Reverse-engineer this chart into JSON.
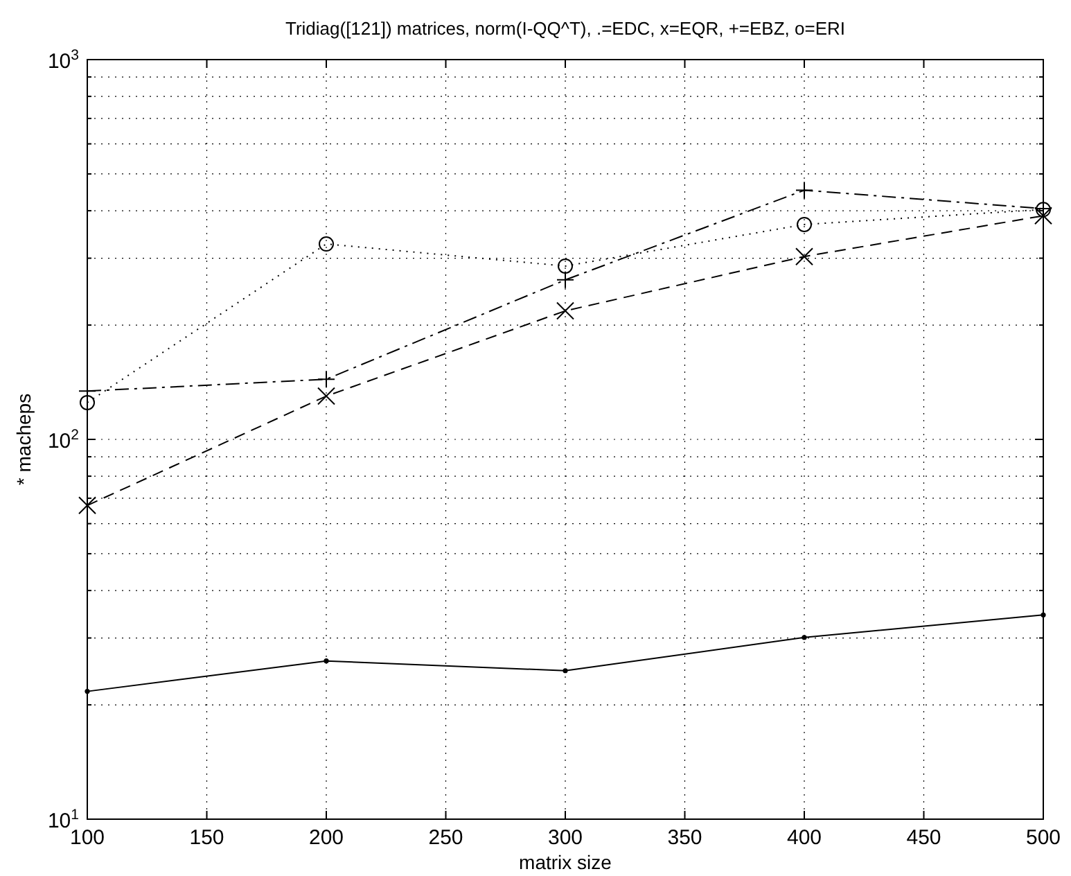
{
  "chart_data": {
    "type": "line",
    "title": "Tridiag([121]) matrices, norm(I-QQ^T), .=EDC, x=EQR, +=EBZ, o=ERI",
    "xlabel": "matrix size",
    "ylabel": "* macheps",
    "x": [
      100,
      200,
      300,
      400,
      500
    ],
    "series": [
      {
        "color": "#000000",
        "marker": "point",
        "line_style": "solid",
        "values": [
          21.7,
          26.1,
          24.6,
          30.1,
          34.5
        ]
      },
      {
        "color": "#000000",
        "marker": "cross",
        "line_style": "dashed",
        "values": [
          67,
          130,
          218,
          303,
          388
        ]
      },
      {
        "color": "#000000",
        "marker": "plus",
        "line_style": "dashdot",
        "values": [
          134,
          144,
          263,
          453,
          405
        ]
      },
      {
        "color": "#000000",
        "marker": "circle",
        "line_style": "dotted",
        "values": [
          125,
          327,
          286,
          368,
          403
        ]
      }
    ],
    "log": "y",
    "grid": true,
    "xlim": [
      100,
      500
    ],
    "xticks": [
      100,
      150,
      200,
      250,
      300,
      350,
      400,
      450,
      500
    ],
    "ylim": [
      10,
      1000
    ],
    "yticks": [
      {
        "value": 10,
        "label": "10$^{1}$"
      },
      {
        "value": 20,
        "label": null
      },
      {
        "value": 30,
        "label": null
      },
      {
        "value": 40,
        "label": null
      },
      {
        "value": 50,
        "label": null
      },
      {
        "value": 60,
        "label": null
      },
      {
        "value": 70,
        "label": null
      },
      {
        "value": 80,
        "label": null
      },
      {
        "value": 90,
        "label": null
      },
      {
        "value": 100,
        "label": "10$^{2}$"
      },
      {
        "value": 200,
        "label": null
      },
      {
        "value": 300,
        "label": null
      },
      {
        "value": 400,
        "label": null
      },
      {
        "value": 500,
        "label": null
      },
      {
        "value": 600,
        "label": null
      },
      {
        "value": 700,
        "label": null
      },
      {
        "value": 800,
        "label": null
      },
      {
        "value": 900,
        "label": null
      },
      {
        "value": 1000,
        "label": "10$^{3}$"
      }
    ]
  }
}
